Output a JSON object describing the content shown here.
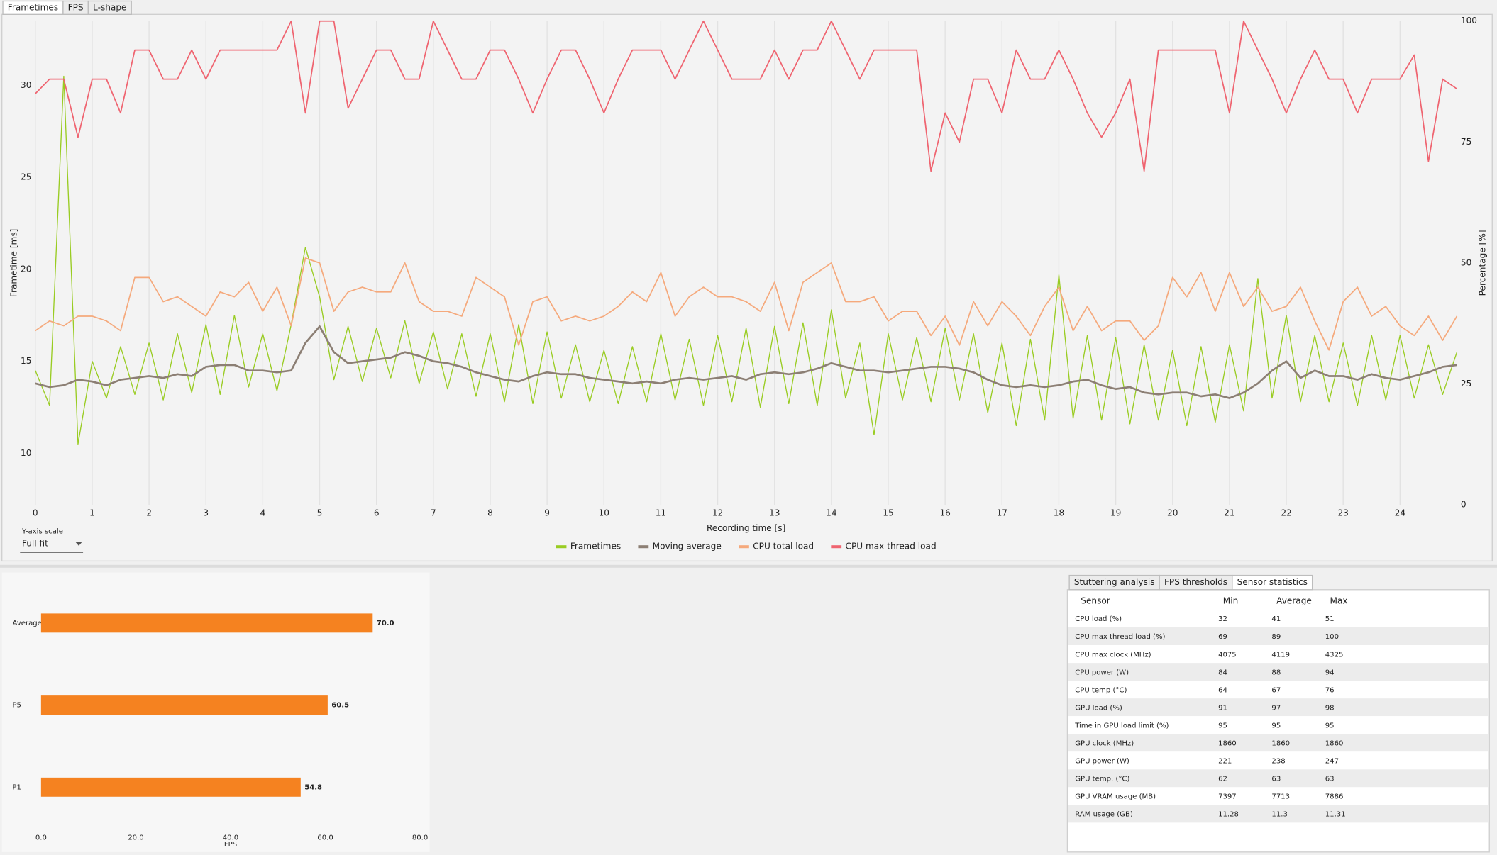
{
  "tabs": [
    "Frametimes",
    "FPS",
    "L-shape"
  ],
  "y_axis_scale": {
    "label": "Y-axis scale",
    "value": "Full fit"
  },
  "chart_data": [
    {
      "type": "line",
      "xlabel": "Recording time [s]",
      "ylabel": "Frametime [ms]",
      "y2label": "Percentage [%]",
      "xlim": [
        0,
        25
      ],
      "xticks": [
        0,
        1,
        2,
        3,
        4,
        5,
        6,
        7,
        8,
        9,
        10,
        11,
        12,
        13,
        14,
        15,
        16,
        17,
        18,
        19,
        20,
        21,
        22,
        23,
        24
      ],
      "ylim": [
        7.2,
        33.5
      ],
      "yticks": [
        10,
        15,
        20,
        25,
        30
      ],
      "y2lim": [
        0,
        100
      ],
      "y2ticks": [
        0,
        25,
        50,
        75,
        100
      ],
      "grid": "x",
      "legend": "bottom",
      "x": [
        0,
        0.25,
        0.5,
        0.75,
        1,
        1.25,
        1.5,
        1.75,
        2,
        2.25,
        2.5,
        2.75,
        3,
        3.25,
        3.5,
        3.75,
        4,
        4.25,
        4.5,
        4.75,
        5,
        5.25,
        5.5,
        5.75,
        6,
        6.25,
        6.5,
        6.75,
        7,
        7.25,
        7.5,
        7.75,
        8,
        8.25,
        8.5,
        8.75,
        9,
        9.25,
        9.5,
        9.75,
        10,
        10.25,
        10.5,
        10.75,
        11,
        11.25,
        11.5,
        11.75,
        12,
        12.25,
        12.5,
        12.75,
        13,
        13.25,
        13.5,
        13.75,
        14,
        14.25,
        14.5,
        14.75,
        15,
        15.25,
        15.5,
        15.75,
        16,
        16.25,
        16.5,
        16.75,
        17,
        17.25,
        17.5,
        17.75,
        18,
        18.25,
        18.5,
        18.75,
        19,
        19.25,
        19.5,
        19.75,
        20,
        20.25,
        20.5,
        20.75,
        21,
        21.25,
        21.5,
        21.75,
        22,
        22.25,
        22.5,
        22.75,
        23,
        23.25,
        23.5,
        23.75,
        24,
        24.25,
        24.5,
        24.75,
        25
      ],
      "series": [
        {
          "name": "Frametimes",
          "color": "#99cc22",
          "width": 1,
          "values": [
            14.5,
            12.6,
            30.5,
            10.5,
            15.0,
            13.0,
            15.8,
            13.2,
            16.0,
            12.9,
            16.5,
            13.3,
            17.0,
            13.2,
            17.5,
            13.6,
            16.5,
            13.4,
            17.0,
            21.2,
            18.5,
            14.0,
            16.9,
            13.9,
            16.8,
            14.1,
            17.2,
            13.8,
            16.6,
            13.5,
            16.5,
            13.1,
            16.5,
            12.8,
            17.0,
            12.7,
            16.6,
            13.0,
            15.9,
            12.8,
            15.6,
            12.7,
            15.8,
            12.8,
            16.5,
            12.9,
            16.2,
            12.6,
            16.4,
            12.8,
            16.8,
            12.5,
            16.9,
            12.7,
            17.1,
            12.6,
            17.8,
            13.0,
            16.0,
            11.0,
            16.5,
            12.9,
            16.3,
            12.8,
            16.8,
            12.9,
            16.5,
            12.2,
            16.0,
            11.5,
            16.2,
            11.8,
            19.7,
            11.9,
            16.4,
            11.8,
            16.3,
            11.6,
            15.9,
            11.8,
            15.6,
            11.5,
            15.8,
            11.7,
            15.9,
            12.3,
            19.5,
            13.0,
            17.5,
            12.8,
            16.4,
            12.8,
            16.0,
            12.6,
            16.4,
            12.9,
            16.4,
            13.0,
            15.9,
            13.2,
            15.5
          ]
        },
        {
          "name": "Moving average",
          "color": "#8c7f74",
          "width": 2,
          "values": [
            13.8,
            13.6,
            13.7,
            14.0,
            13.9,
            13.7,
            14.0,
            14.1,
            14.2,
            14.1,
            14.3,
            14.2,
            14.7,
            14.8,
            14.8,
            14.5,
            14.5,
            14.4,
            14.5,
            16.0,
            16.9,
            15.5,
            14.9,
            15.0,
            15.1,
            15.2,
            15.5,
            15.3,
            15.0,
            14.9,
            14.7,
            14.4,
            14.2,
            14.0,
            13.9,
            14.2,
            14.4,
            14.3,
            14.3,
            14.1,
            14.0,
            13.9,
            13.8,
            13.9,
            13.8,
            14.0,
            14.1,
            14.0,
            14.1,
            14.2,
            14.0,
            14.3,
            14.4,
            14.3,
            14.4,
            14.6,
            14.9,
            14.7,
            14.5,
            14.5,
            14.4,
            14.5,
            14.6,
            14.7,
            14.7,
            14.6,
            14.4,
            14.0,
            13.7,
            13.6,
            13.7,
            13.6,
            13.7,
            13.9,
            14.0,
            13.7,
            13.5,
            13.6,
            13.3,
            13.2,
            13.3,
            13.3,
            13.1,
            13.2,
            13.0,
            13.3,
            13.8,
            14.5,
            15.0,
            14.1,
            14.5,
            14.2,
            14.2,
            14.0,
            14.3,
            14.1,
            14.0,
            14.2,
            14.4,
            14.7,
            14.8
          ]
        },
        {
          "name": "CPU total load",
          "color": "#f5a97c",
          "width": 1.3,
          "axis": "y2",
          "values": [
            36,
            38,
            37,
            39,
            39,
            38,
            36,
            47,
            47,
            42,
            43,
            41,
            39,
            44,
            43,
            46,
            40,
            45,
            37,
            51,
            50,
            40,
            44,
            45,
            44,
            44,
            50,
            42,
            40,
            40,
            39,
            47,
            45,
            43,
            33,
            42,
            43,
            38,
            39,
            38,
            39,
            41,
            44,
            42,
            48,
            39,
            43,
            45,
            43,
            43,
            42,
            40,
            46,
            36,
            46,
            48,
            50,
            42,
            42,
            43,
            38,
            40,
            40,
            35,
            39,
            33,
            42,
            37,
            42,
            39,
            35,
            41,
            45,
            36,
            41,
            36,
            38,
            38,
            34,
            37,
            47,
            43,
            48,
            40,
            48,
            41,
            45,
            40,
            41,
            45,
            38,
            32,
            42,
            45,
            39,
            41,
            37,
            35,
            39,
            34,
            39
          ]
        },
        {
          "name": "CPU max thread load",
          "color": "#ef6470",
          "width": 1.3,
          "axis": "y2",
          "values": [
            85,
            88,
            88,
            76,
            88,
            88,
            81,
            94,
            94,
            88,
            88,
            94,
            88,
            94,
            94,
            94,
            94,
            94,
            100,
            81,
            100,
            100,
            82,
            88,
            94,
            94,
            88,
            88,
            100,
            94,
            88,
            88,
            94,
            94,
            88,
            81,
            88,
            94,
            94,
            88,
            81,
            88,
            94,
            94,
            94,
            88,
            94,
            100,
            94,
            88,
            88,
            88,
            94,
            88,
            94,
            94,
            100,
            94,
            88,
            94,
            94,
            94,
            94,
            69,
            81,
            75,
            88,
            88,
            81,
            94,
            88,
            88,
            94,
            88,
            81,
            76,
            81,
            88,
            69,
            94,
            94,
            94,
            94,
            94,
            81,
            100,
            94,
            88,
            81,
            88,
            94,
            88,
            88,
            81,
            88,
            88,
            88,
            93,
            71,
            88,
            86
          ]
        }
      ]
    },
    {
      "type": "bar",
      "orientation": "horizontal",
      "xlabel": "FPS",
      "color": "#f58220",
      "categories": [
        "Average",
        "P5",
        "P1"
      ],
      "values": [
        70.0,
        60.5,
        54.8
      ],
      "value_labels": [
        "70.0",
        "60.5",
        "54.8"
      ],
      "xlim": [
        0,
        80
      ],
      "xticks": [
        {
          "value": 0,
          "label": "0.0"
        },
        {
          "value": 20,
          "label": "20.0"
        },
        {
          "value": 40,
          "label": "40.0"
        },
        {
          "value": 60,
          "label": "60.0"
        },
        {
          "value": 80,
          "label": "80.0"
        }
      ]
    }
  ],
  "stats_tabs": [
    "Stuttering analysis",
    "FPS thresholds",
    "Sensor statistics"
  ],
  "table": {
    "columns": [
      "Sensor",
      "Min",
      "Average",
      "Max"
    ],
    "rows": [
      [
        "CPU load (%)",
        32,
        41,
        51
      ],
      [
        "CPU max thread load (%)",
        69,
        89,
        100
      ],
      [
        "CPU max clock (MHz)",
        4075,
        4119,
        4325
      ],
      [
        "CPU power (W)",
        84,
        88,
        94
      ],
      [
        "CPU temp (°C)",
        64,
        67,
        76
      ],
      [
        "GPU load (%)",
        91,
        97,
        98
      ],
      [
        "Time in GPU load limit (%)",
        95,
        95,
        95
      ],
      [
        "GPU clock (MHz)",
        1860,
        1860,
        1860
      ],
      [
        "GPU power (W)",
        221,
        238,
        247
      ],
      [
        "GPU temp. (°C)",
        62,
        63,
        63
      ],
      [
        "GPU VRAM usage (MB)",
        7397,
        7713,
        7886
      ],
      [
        "RAM usage (GB)",
        11.28,
        11.3,
        11.31
      ]
    ]
  }
}
